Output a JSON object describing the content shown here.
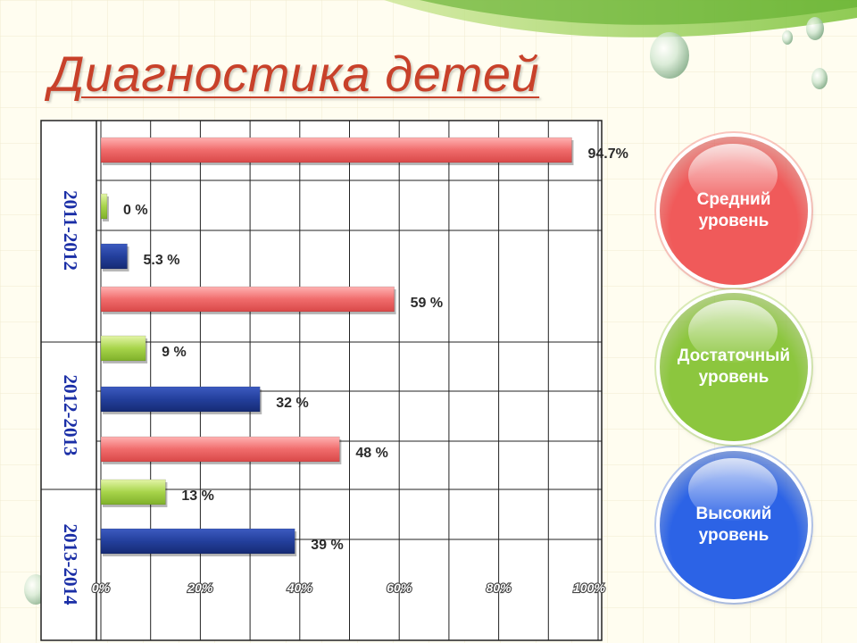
{
  "title": "Диагностика детей",
  "legend": [
    {
      "label": "Средний\nуровень",
      "color": "#f05a5a",
      "text_color": "#ffffff"
    },
    {
      "label": "Достаточный\nуровень",
      "color": "#8cc63e",
      "text_color": "#ffffff"
    },
    {
      "label": "Высокий\nуровень",
      "color": "#2c63e6",
      "text_color": "#ffffff"
    }
  ],
  "chart_data": {
    "type": "bar",
    "orientation": "horizontal",
    "xlim": [
      0,
      100
    ],
    "xticks": [
      "0%",
      "20%",
      "40%",
      "60%",
      "80%",
      "100%"
    ],
    "grid": true,
    "periods": [
      "2011-2012",
      "2012-2013",
      "2013-2014"
    ],
    "bars": [
      {
        "period": "2011-2012",
        "level": "Средний уровень",
        "value": 94.7,
        "label": "94.7%",
        "color": "#f06c6c"
      },
      {
        "period": "2011-2012",
        "level": "Достаточный уровень",
        "value": 0,
        "label": "0 %",
        "color": "#a7d44a"
      },
      {
        "period": "2011-2012",
        "level": "Высокий уровень",
        "value": 5.3,
        "label": "5.3 %",
        "color": "#233f9c"
      },
      {
        "period": "2012-2013",
        "level": "Средний уровень",
        "value": 59,
        "label": "59 %",
        "color": "#f06c6c"
      },
      {
        "period": "2012-2013",
        "level": "Достаточный уровень",
        "value": 9,
        "label": "9 %",
        "color": "#a7d44a"
      },
      {
        "period": "2012-2013",
        "level": "Высокий уровень",
        "value": 32,
        "label": "32 %",
        "color": "#233f9c"
      },
      {
        "period": "2013-2014",
        "level": "Средний уровень",
        "value": 48,
        "label": "48 %",
        "color": "#f06c6c"
      },
      {
        "period": "2013-2014",
        "level": "Достаточный уровень",
        "value": 13,
        "label": "13 %",
        "color": "#a7d44a"
      },
      {
        "period": "2013-2014",
        "level": "Высокий уровень",
        "value": 39,
        "label": "39 %",
        "color": "#233f9c"
      }
    ]
  }
}
